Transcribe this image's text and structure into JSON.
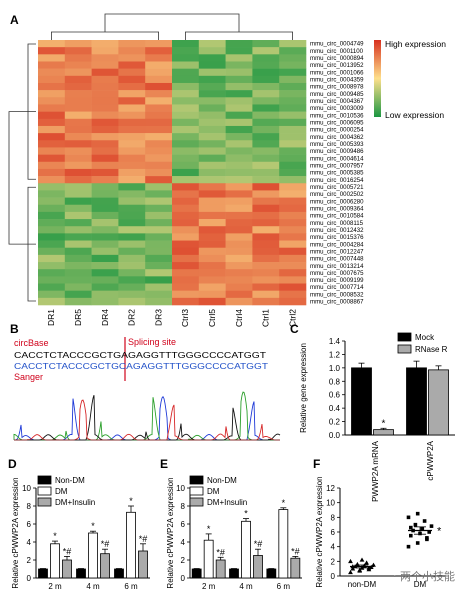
{
  "panel_letters": {
    "a": "A",
    "b": "B",
    "c": "C",
    "d": "D",
    "e": "E",
    "f": "F"
  },
  "heatmap": {
    "legend_high": "High expression",
    "legend_low": "Low expression",
    "colors": {
      "high": "#d7301f",
      "mid": "#fee08b",
      "low": "#1a9641"
    },
    "samples": [
      "DR1",
      "DR5",
      "DR4",
      "DR2",
      "DR3",
      "Ctrl3",
      "Ctrl5",
      "Ctrl4",
      "Ctrl1",
      "Ctrl2"
    ],
    "genes": [
      "mmu_circ_0004749",
      "mmu_circ_0001100",
      "mmu_circ_0000894",
      "mmu_circ_0013952",
      "mmu_circ_0001066",
      "mmu_circ_0004359",
      "mmu_circ_0008978",
      "mmu_circ_0009485",
      "mmu_circ_0004367",
      "mmu_circ_0003009",
      "mmu_circ_0010536",
      "mmu_circ_0006095",
      "mmu_circ_0000254",
      "mmu_circ_0004362",
      "mmu_circ_0005393",
      "mmu_circ_0009486",
      "mmu_circ_0004614",
      "mmu_circ_0007957",
      "mmu_circ_0005385",
      "mmu_circ_0016254",
      "mmu_circ_0005721",
      "mmu_circ_0002502",
      "mmu_circ_0006280",
      "mmu_circ_0009364",
      "mmu_circ_0010584",
      "mmu_circ_0008115",
      "mmu_circ_0012432",
      "mmu_circ_0015376",
      "mmu_circ_0004284",
      "mmu_circ_0012247",
      "mmu_circ_0007448",
      "mmu_circ_0013214",
      "mmu_circ_0007675",
      "mmu_circ_0009199",
      "mmu_circ_0007714",
      "mmu_circ_0008532",
      "mmu_circ_0008867"
    ]
  },
  "sequence": {
    "circbase_label": "circBase",
    "sanger_label": "Sanger",
    "splicing_label": "Splicing site",
    "circbase_seq": "CACCTCTACCCGCTGAGAGGTTTGGGCCCCATGGT",
    "sanger_seq": "CACCTCTACCCGCTGCAGAGGTTTGGGCCCCATGGT"
  },
  "chart_data": [
    {
      "panel": "C",
      "type": "bar",
      "categories": [
        "PWWP2A mRNA",
        "cPWWP2A"
      ],
      "series": [
        {
          "name": "Mock",
          "values": [
            1.0,
            1.0
          ],
          "errors": [
            0.07,
            0.1
          ],
          "color": "#000000"
        },
        {
          "name": "RNase R",
          "values": [
            0.08,
            0.97
          ],
          "errors": [
            0.02,
            0.06
          ],
          "color": "#aaaaaa"
        }
      ],
      "ylabel": "Relative gene expression",
      "ylim": [
        0,
        1.4
      ],
      "yticks": [
        "0.0",
        "0.2",
        "0.4",
        "0.6",
        "0.8",
        "1.0",
        "1.2",
        "1.4"
      ],
      "annotations": [
        "*"
      ]
    },
    {
      "panel": "D",
      "type": "bar",
      "categories": [
        "2 m",
        "4 m",
        "6 m"
      ],
      "series": [
        {
          "name": "Non-DM",
          "values": [
            1.0,
            1.0,
            1.0
          ],
          "errors": [
            0.05,
            0.05,
            0.05
          ],
          "color": "#000000"
        },
        {
          "name": "DM",
          "values": [
            3.8,
            5.0,
            7.3
          ],
          "errors": [
            0.3,
            0.2,
            0.7
          ],
          "color": "#ffffff"
        },
        {
          "name": "DM+Insulin",
          "values": [
            2.0,
            2.7,
            3.0
          ],
          "errors": [
            0.4,
            0.5,
            0.8
          ],
          "color": "#aaaaaa"
        }
      ],
      "ylabel": "Relative cPWWP2A expression",
      "ylim": [
        0,
        10
      ],
      "yticks": [
        "0",
        "2",
        "4",
        "6",
        "8",
        "10"
      ],
      "annotations": [
        "*",
        "*#",
        "*",
        "*#",
        "*",
        "*#"
      ]
    },
    {
      "panel": "E",
      "type": "bar",
      "categories": [
        "2 m",
        "4 m",
        "6 m"
      ],
      "series": [
        {
          "name": "Non-DM",
          "values": [
            1.0,
            1.0,
            1.0
          ],
          "errors": [
            0.05,
            0.05,
            0.05
          ],
          "color": "#000000"
        },
        {
          "name": "DM",
          "values": [
            4.2,
            6.3,
            7.6
          ],
          "errors": [
            0.7,
            0.3,
            0.2
          ],
          "color": "#ffffff"
        },
        {
          "name": "DM+Insulin",
          "values": [
            2.0,
            2.5,
            2.2
          ],
          "errors": [
            0.3,
            0.7,
            0.2
          ],
          "color": "#aaaaaa"
        }
      ],
      "ylabel": "Relative cPWWP2A expression",
      "ylim": [
        0,
        10
      ],
      "yticks": [
        "0",
        "2",
        "4",
        "6",
        "8",
        "10"
      ],
      "annotations": [
        "*",
        "*#",
        "*",
        "*#",
        "*",
        "*#"
      ]
    },
    {
      "panel": "F",
      "type": "scatter",
      "categories": [
        "non-DM",
        "DM"
      ],
      "series": [
        {
          "name": "non-DM",
          "values": [
            0.5,
            0.7,
            0.9,
            1.0,
            1.1,
            1.2,
            1.3,
            1.4,
            1.5,
            1.6,
            1.8,
            2.0,
            0.8,
            1.1,
            1.3,
            2.2
          ],
          "mean": 1.3,
          "sem": 0.2
        },
        {
          "name": "DM",
          "values": [
            4.0,
            4.5,
            5.0,
            5.5,
            5.8,
            6.0,
            6.2,
            6.5,
            6.8,
            7.0,
            7.5,
            8.0,
            8.5,
            5.2,
            6.6
          ],
          "mean": 6.2,
          "sem": 0.5
        }
      ],
      "ylabel": "Relative cPWWP2A expression",
      "ylim": [
        0,
        12
      ],
      "yticks": [
        "0",
        "2",
        "4",
        "6",
        "8",
        "10",
        "12"
      ],
      "annotations": [
        "*"
      ]
    }
  ],
  "watermark": "· 两个小技能"
}
